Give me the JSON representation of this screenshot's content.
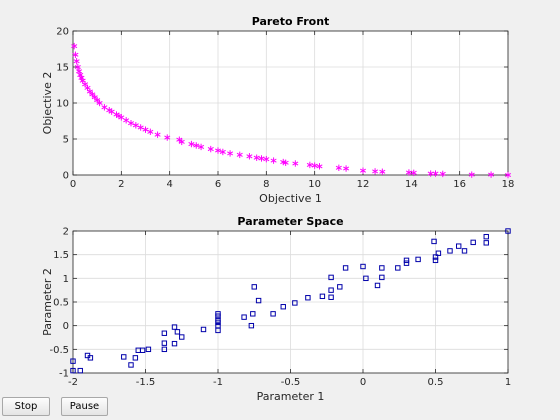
{
  "buttons": {
    "stop": "Stop",
    "pause": "Pause"
  },
  "chart_data": [
    {
      "type": "scatter",
      "title": "Pareto Front",
      "xlabel": "Objective 1",
      "ylabel": "Objective 2",
      "xlim": [
        0,
        18
      ],
      "ylim": [
        0,
        20
      ],
      "xticks": [
        0,
        2,
        4,
        6,
        8,
        10,
        12,
        14,
        16,
        18
      ],
      "yticks": [
        0,
        5,
        10,
        15,
        20
      ],
      "grid": true,
      "marker": "asterisk",
      "color": "#ff00ff",
      "x": [
        0.05,
        0.1,
        0.15,
        0.2,
        0.25,
        0.3,
        0.35,
        0.4,
        0.5,
        0.6,
        0.7,
        0.8,
        0.9,
        1.0,
        1.1,
        1.3,
        1.5,
        1.6,
        1.8,
        1.9,
        2.0,
        2.2,
        2.4,
        2.6,
        2.8,
        3.0,
        3.2,
        3.5,
        3.9,
        4.4,
        4.5,
        4.9,
        5.1,
        5.3,
        5.7,
        6.0,
        6.2,
        6.5,
        6.9,
        7.3,
        7.6,
        7.8,
        8.0,
        8.3,
        8.7,
        8.8,
        9.2,
        9.8,
        10.0,
        10.2,
        11.0,
        11.3,
        12.0,
        12.5,
        12.8,
        13.9,
        14.1,
        14.8,
        15.0,
        15.3,
        16.5,
        17.3,
        18.0
      ],
      "y": [
        17.9,
        16.7,
        15.8,
        15.0,
        14.4,
        13.9,
        13.5,
        13.1,
        12.6,
        12.1,
        11.6,
        11.2,
        10.8,
        10.4,
        10.0,
        9.4,
        9.0,
        8.8,
        8.4,
        8.2,
        8.0,
        7.6,
        7.2,
        6.9,
        6.6,
        6.3,
        6.0,
        5.6,
        5.2,
        4.9,
        4.6,
        4.3,
        4.1,
        3.9,
        3.6,
        3.4,
        3.2,
        3.0,
        2.8,
        2.6,
        2.4,
        2.3,
        2.2,
        2.0,
        1.8,
        1.7,
        1.6,
        1.4,
        1.3,
        1.2,
        1.0,
        0.9,
        0.6,
        0.5,
        0.45,
        0.35,
        0.3,
        0.2,
        0.2,
        0.15,
        0.05,
        0.05,
        0.0
      ]
    },
    {
      "type": "scatter",
      "title": "Parameter Space",
      "xlabel": "Parameter 1",
      "ylabel": "Parameter 2",
      "xlim": [
        -2,
        1
      ],
      "ylim": [
        -1,
        2
      ],
      "xticks": [
        -2,
        -1.5,
        -1,
        -0.5,
        0,
        0.5,
        1
      ],
      "yticks": [
        -1,
        -0.5,
        0,
        0.5,
        1,
        1.5,
        2
      ],
      "grid": true,
      "marker": "square",
      "color": "#0000aa",
      "x": [
        -2.0,
        -2.0,
        -1.95,
        -1.9,
        -1.88,
        -1.65,
        -1.6,
        -1.57,
        -1.55,
        -1.52,
        -1.48,
        -1.37,
        -1.37,
        -1.37,
        -1.3,
        -1.3,
        -1.28,
        -1.25,
        -1.1,
        -1.0,
        -1.0,
        -1.0,
        -1.0,
        -1.0,
        -1.0,
        -0.82,
        -0.77,
        -0.76,
        -0.75,
        -0.72,
        -0.62,
        -0.55,
        -0.47,
        -0.38,
        -0.28,
        -0.22,
        -0.22,
        -0.22,
        -0.16,
        -0.12,
        0.0,
        0.02,
        0.1,
        0.13,
        0.13,
        0.24,
        0.3,
        0.3,
        0.38,
        0.49,
        0.5,
        0.5,
        0.52,
        0.6,
        0.66,
        0.7,
        0.76,
        0.85,
        0.85,
        1.0
      ],
      "y": [
        -0.95,
        -0.75,
        -0.95,
        -0.63,
        -0.68,
        -0.66,
        -0.83,
        -0.68,
        -0.52,
        -0.52,
        -0.5,
        -0.37,
        -0.5,
        -0.16,
        -0.38,
        -0.03,
        -0.13,
        -0.24,
        -0.08,
        -0.1,
        0.0,
        0.07,
        0.12,
        0.2,
        0.25,
        0.18,
        0.0,
        0.25,
        0.82,
        0.53,
        0.25,
        0.4,
        0.48,
        0.59,
        0.62,
        0.75,
        1.02,
        0.6,
        0.82,
        1.22,
        1.25,
        1.0,
        0.85,
        1.22,
        1.02,
        1.22,
        1.38,
        1.32,
        1.4,
        1.78,
        1.45,
        1.38,
        1.53,
        1.58,
        1.68,
        1.58,
        1.76,
        1.88,
        1.75,
        2.0
      ]
    }
  ]
}
